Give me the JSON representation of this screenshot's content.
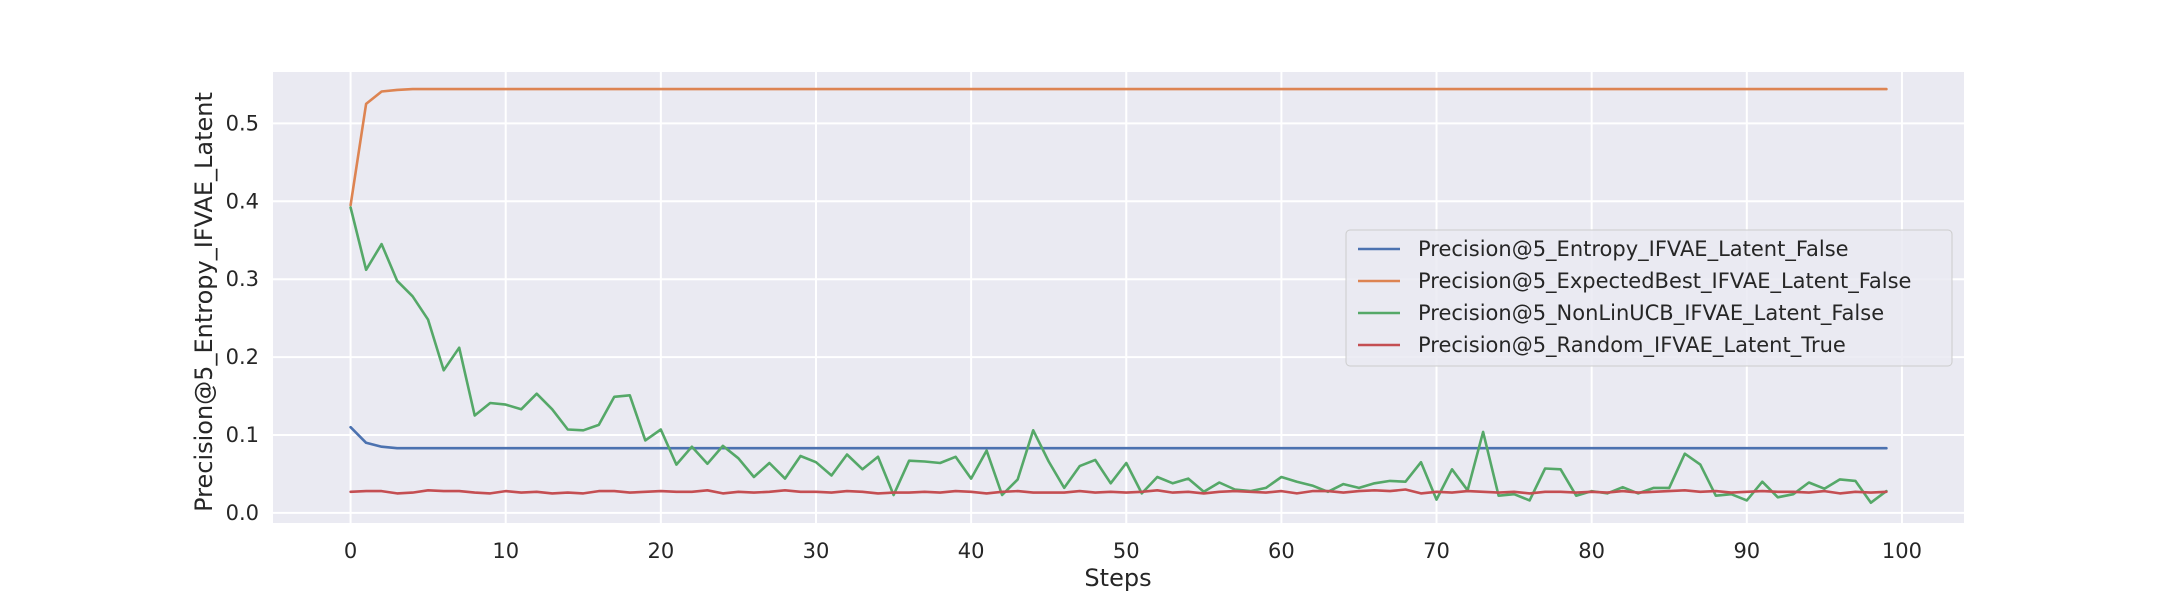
{
  "chart_data": {
    "type": "line",
    "xlabel": "Steps",
    "ylabel": "Precision@5_Entropy_IFVAE_Latent",
    "xlim": [
      -5,
      104
    ],
    "ylim": [
      -0.013,
      0.566
    ],
    "xticks": [
      0,
      10,
      20,
      30,
      40,
      50,
      60,
      70,
      80,
      90,
      100
    ],
    "yticks": [
      0.0,
      0.1,
      0.2,
      0.3,
      0.4,
      0.5
    ],
    "ytick_labels": [
      "0.0",
      "0.1",
      "0.2",
      "0.3",
      "0.4",
      "0.5"
    ],
    "grid": true,
    "legend_position": "center-right",
    "x": [
      0,
      1,
      2,
      3,
      4,
      5,
      6,
      7,
      8,
      9,
      10,
      11,
      12,
      13,
      14,
      15,
      16,
      17,
      18,
      19,
      20,
      21,
      22,
      23,
      24,
      25,
      26,
      27,
      28,
      29,
      30,
      31,
      32,
      33,
      34,
      35,
      36,
      37,
      38,
      39,
      40,
      41,
      42,
      43,
      44,
      45,
      46,
      47,
      48,
      49,
      50,
      51,
      52,
      53,
      54,
      55,
      56,
      57,
      58,
      59,
      60,
      61,
      62,
      63,
      64,
      65,
      66,
      67,
      68,
      69,
      70,
      71,
      72,
      73,
      74,
      75,
      76,
      77,
      78,
      79,
      80,
      81,
      82,
      83,
      84,
      85,
      86,
      87,
      88,
      89,
      90,
      91,
      92,
      93,
      94,
      95,
      96,
      97,
      98,
      99
    ],
    "series": [
      {
        "name": "Precision@5_Entropy_IFVAE_Latent_False",
        "color": "#4c72b0",
        "values": [
          0.11,
          0.09,
          0.085,
          0.083,
          0.083,
          0.083,
          0.083,
          0.083,
          0.083,
          0.083,
          0.083,
          0.083,
          0.083,
          0.083,
          0.083,
          0.083,
          0.083,
          0.083,
          0.083,
          0.083,
          0.083,
          0.083,
          0.083,
          0.083,
          0.083,
          0.083,
          0.083,
          0.083,
          0.083,
          0.083,
          0.083,
          0.083,
          0.083,
          0.083,
          0.083,
          0.083,
          0.083,
          0.083,
          0.083,
          0.083,
          0.083,
          0.083,
          0.083,
          0.083,
          0.083,
          0.083,
          0.083,
          0.083,
          0.083,
          0.083,
          0.083,
          0.083,
          0.083,
          0.083,
          0.083,
          0.083,
          0.083,
          0.083,
          0.083,
          0.083,
          0.083,
          0.083,
          0.083,
          0.083,
          0.083,
          0.083,
          0.083,
          0.083,
          0.083,
          0.083,
          0.083,
          0.083,
          0.083,
          0.083,
          0.083,
          0.083,
          0.083,
          0.083,
          0.083,
          0.083,
          0.083,
          0.083,
          0.083,
          0.083,
          0.083,
          0.083,
          0.083,
          0.083,
          0.083,
          0.083,
          0.083,
          0.083,
          0.083,
          0.083,
          0.083,
          0.083,
          0.083,
          0.083,
          0.083,
          0.083
        ]
      },
      {
        "name": "Precision@5_ExpectedBest_IFVAE_Latent_False",
        "color": "#dd8452",
        "values": [
          0.395,
          0.525,
          0.541,
          0.543,
          0.544,
          0.544,
          0.544,
          0.544,
          0.544,
          0.544,
          0.544,
          0.544,
          0.544,
          0.544,
          0.544,
          0.544,
          0.544,
          0.544,
          0.544,
          0.544,
          0.544,
          0.544,
          0.544,
          0.544,
          0.544,
          0.544,
          0.544,
          0.544,
          0.544,
          0.544,
          0.544,
          0.544,
          0.544,
          0.544,
          0.544,
          0.544,
          0.544,
          0.544,
          0.544,
          0.544,
          0.544,
          0.544,
          0.544,
          0.544,
          0.544,
          0.544,
          0.544,
          0.544,
          0.544,
          0.544,
          0.544,
          0.544,
          0.544,
          0.544,
          0.544,
          0.544,
          0.544,
          0.544,
          0.544,
          0.544,
          0.544,
          0.544,
          0.544,
          0.544,
          0.544,
          0.544,
          0.544,
          0.544,
          0.544,
          0.544,
          0.544,
          0.544,
          0.544,
          0.544,
          0.544,
          0.544,
          0.544,
          0.544,
          0.544,
          0.544,
          0.544,
          0.544,
          0.544,
          0.544,
          0.544,
          0.544,
          0.544,
          0.544,
          0.544,
          0.544,
          0.544,
          0.544,
          0.544,
          0.544,
          0.544,
          0.544,
          0.544,
          0.544,
          0.544,
          0.544
        ]
      },
      {
        "name": "Precision@5_NonLinUCB_IFVAE_Latent_False",
        "color": "#55a868",
        "values": [
          0.392,
          0.312,
          0.345,
          0.298,
          0.278,
          0.248,
          0.183,
          0.212,
          0.125,
          0.141,
          0.139,
          0.133,
          0.153,
          0.133,
          0.107,
          0.106,
          0.113,
          0.149,
          0.151,
          0.093,
          0.107,
          0.062,
          0.085,
          0.063,
          0.086,
          0.07,
          0.046,
          0.064,
          0.044,
          0.073,
          0.065,
          0.048,
          0.075,
          0.056,
          0.072,
          0.023,
          0.067,
          0.066,
          0.064,
          0.072,
          0.044,
          0.08,
          0.023,
          0.043,
          0.106,
          0.066,
          0.032,
          0.06,
          0.068,
          0.038,
          0.064,
          0.025,
          0.046,
          0.038,
          0.044,
          0.027,
          0.039,
          0.03,
          0.028,
          0.032,
          0.046,
          0.04,
          0.035,
          0.027,
          0.037,
          0.032,
          0.038,
          0.041,
          0.04,
          0.065,
          0.017,
          0.056,
          0.029,
          0.104,
          0.022,
          0.024,
          0.016,
          0.057,
          0.056,
          0.022,
          0.028,
          0.025,
          0.033,
          0.025,
          0.032,
          0.032,
          0.076,
          0.062,
          0.022,
          0.024,
          0.016,
          0.04,
          0.02,
          0.024,
          0.039,
          0.031,
          0.043,
          0.041,
          0.013,
          0.028
        ]
      },
      {
        "name": "Precision@5_Random_IFVAE_Latent_True",
        "color": "#c44e52",
        "values": [
          0.027,
          0.028,
          0.028,
          0.025,
          0.026,
          0.029,
          0.028,
          0.028,
          0.026,
          0.025,
          0.028,
          0.026,
          0.027,
          0.025,
          0.026,
          0.025,
          0.028,
          0.028,
          0.026,
          0.027,
          0.028,
          0.027,
          0.027,
          0.029,
          0.025,
          0.027,
          0.026,
          0.027,
          0.029,
          0.027,
          0.027,
          0.026,
          0.028,
          0.027,
          0.025,
          0.026,
          0.026,
          0.027,
          0.026,
          0.028,
          0.027,
          0.025,
          0.027,
          0.028,
          0.026,
          0.026,
          0.026,
          0.028,
          0.026,
          0.027,
          0.026,
          0.027,
          0.029,
          0.026,
          0.027,
          0.025,
          0.027,
          0.028,
          0.027,
          0.026,
          0.028,
          0.025,
          0.028,
          0.028,
          0.026,
          0.028,
          0.029,
          0.028,
          0.03,
          0.025,
          0.027,
          0.026,
          0.028,
          0.027,
          0.026,
          0.027,
          0.025,
          0.027,
          0.027,
          0.026,
          0.027,
          0.026,
          0.028,
          0.026,
          0.027,
          0.028,
          0.029,
          0.027,
          0.028,
          0.026,
          0.027,
          0.028,
          0.027,
          0.027,
          0.026,
          0.028,
          0.025,
          0.027,
          0.026,
          0.027
        ]
      }
    ]
  }
}
